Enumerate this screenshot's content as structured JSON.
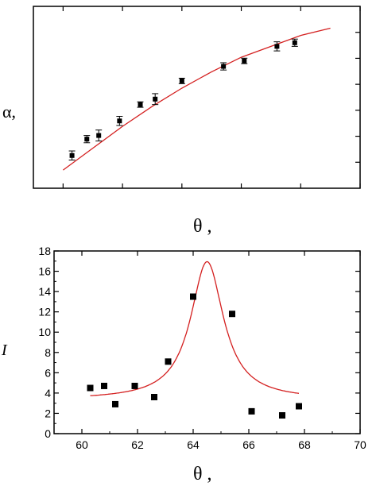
{
  "chart_data": [
    {
      "type": "scatter",
      "title": "",
      "xlabel": "θ ,",
      "ylabel": "α,",
      "xlim": [
        59,
        70
      ],
      "ylim": [
        0,
        1
      ],
      "grid": false,
      "tick_labels_shown": false,
      "series": [
        {
          "kind": "points-with-errorbars",
          "color": "#000000",
          "x": [
            60.3,
            60.8,
            61.2,
            61.9,
            62.6,
            63.1,
            64.0,
            65.4,
            66.1,
            67.2,
            67.8
          ],
          "y": [
            0.18,
            0.27,
            0.29,
            0.37,
            0.46,
            0.49,
            0.59,
            0.67,
            0.7,
            0.78,
            0.8
          ],
          "err": [
            0.025,
            0.02,
            0.03,
            0.025,
            0.015,
            0.03,
            0.015,
            0.02,
            0.015,
            0.025,
            0.02
          ]
        },
        {
          "kind": "fit-line",
          "color": "#d42020",
          "x": [
            60.0,
            61.0,
            62.0,
            63.0,
            64.0,
            65.0,
            66.0,
            67.0,
            68.0,
            69.0
          ],
          "y": [
            0.1,
            0.22,
            0.34,
            0.45,
            0.55,
            0.64,
            0.72,
            0.78,
            0.84,
            0.88
          ]
        }
      ]
    },
    {
      "type": "scatter",
      "title": "",
      "xlabel": "θ ,",
      "ylabel": "I",
      "xlim": [
        59,
        70
      ],
      "ylim": [
        0,
        18
      ],
      "grid": false,
      "x_ticks": [
        60,
        62,
        64,
        66,
        68,
        70
      ],
      "y_ticks": [
        0,
        2,
        4,
        6,
        8,
        10,
        12,
        14,
        16,
        18
      ],
      "series": [
        {
          "kind": "points",
          "color": "#000000",
          "x": [
            60.3,
            60.8,
            61.2,
            61.9,
            62.6,
            63.1,
            64.0,
            65.4,
            66.1,
            67.2,
            67.8
          ],
          "y": [
            4.5,
            4.7,
            2.9,
            4.7,
            3.6,
            7.1,
            13.5,
            11.8,
            2.2,
            1.8,
            2.7
          ]
        },
        {
          "kind": "lorentzian-fit",
          "color": "#d42020",
          "x_start": 60.3,
          "x_end": 67.8,
          "center": 64.5,
          "baseline": 3.35,
          "amplitude": 13.6,
          "half_width": 0.72
        }
      ]
    }
  ]
}
